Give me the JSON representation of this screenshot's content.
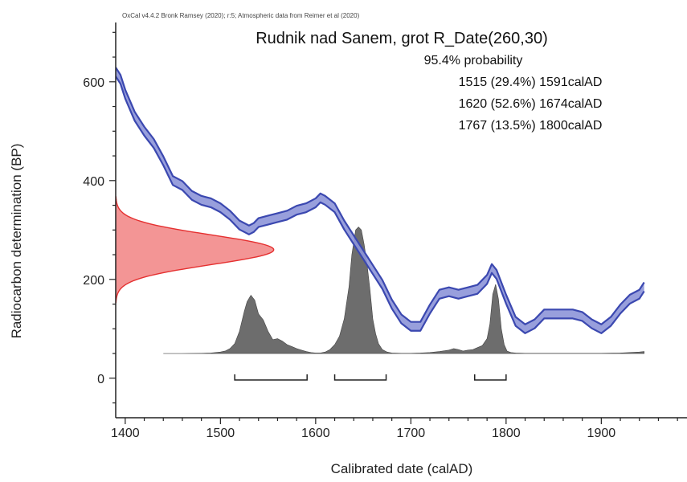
{
  "chart_data": {
    "type": "area",
    "software_header": "OxCal v4.4.2 Bronk Ramsey (2020); r:5; Atmospheric data from Reimer et al (2020)",
    "title": "Rudnik nad Sanem, grot R_Date(260,30)",
    "xlabel": "Calibrated date (calAD)",
    "ylabel": "Radiocarbon determination (BP)",
    "xlim": [
      1390,
      1990
    ],
    "ylim": [
      -80,
      720
    ],
    "x_ticks": [
      1400,
      1500,
      1600,
      1700,
      1800,
      1900
    ],
    "y_ticks": [
      0,
      200,
      400,
      600
    ],
    "annotations": [
      "95.4% probability",
      "1515 (29.4%) 1591calAD",
      "1620 (52.6%) 1674calAD",
      "1767 (13.5%) 1800calAD"
    ],
    "colors": {
      "calibration_curve": "#3b48b0",
      "calibration_band": "#8d95d8",
      "radiocarbon_fill": "#f28a8a",
      "radiocarbon_line": "#e53030",
      "posterior_fill": "#6d6d6d",
      "axes": "#222222"
    },
    "series": [
      {
        "name": "calibration_curve",
        "kind": "band",
        "half_width": 9,
        "x": [
          1390,
          1395,
          1400,
          1410,
          1420,
          1430,
          1440,
          1450,
          1460,
          1470,
          1480,
          1490,
          1500,
          1510,
          1520,
          1530,
          1535,
          1540,
          1550,
          1560,
          1570,
          1580,
          1590,
          1600,
          1605,
          1610,
          1620,
          1630,
          1640,
          1650,
          1660,
          1670,
          1680,
          1690,
          1700,
          1710,
          1720,
          1730,
          1740,
          1750,
          1760,
          1770,
          1780,
          1785,
          1790,
          1795,
          1800,
          1810,
          1820,
          1830,
          1840,
          1850,
          1860,
          1870,
          1880,
          1890,
          1900,
          1910,
          1920,
          1930,
          1940,
          1945
        ],
        "y": [
          620,
          605,
          575,
          530,
          500,
          475,
          440,
          400,
          390,
          370,
          360,
          355,
          345,
          330,
          310,
          300,
          305,
          315,
          320,
          325,
          330,
          340,
          345,
          355,
          365,
          360,
          345,
          310,
          280,
          250,
          220,
          190,
          150,
          120,
          105,
          105,
          140,
          170,
          175,
          170,
          175,
          180,
          200,
          222,
          210,
          185,
          160,
          115,
          100,
          110,
          130,
          130,
          130,
          130,
          125,
          110,
          100,
          115,
          140,
          160,
          170,
          185
        ]
      },
      {
        "name": "radiocarbon_determination",
        "kind": "gaussian",
        "mean": 260,
        "sd": 30,
        "x_start": 1390,
        "peak_x": 1556
      },
      {
        "name": "posterior_density",
        "kind": "area",
        "baseline": 50,
        "x": [
          1440,
          1460,
          1480,
          1490,
          1500,
          1505,
          1510,
          1515,
          1520,
          1525,
          1528,
          1532,
          1536,
          1540,
          1545,
          1550,
          1555,
          1560,
          1565,
          1570,
          1575,
          1580,
          1585,
          1590,
          1595,
          1600,
          1605,
          1610,
          1615,
          1620,
          1625,
          1630,
          1635,
          1638,
          1642,
          1645,
          1648,
          1651,
          1654,
          1657,
          1660,
          1663,
          1666,
          1670,
          1675,
          1680,
          1690,
          1700,
          1710,
          1720,
          1730,
          1740,
          1745,
          1750,
          1755,
          1760,
          1765,
          1770,
          1775,
          1780,
          1783,
          1786,
          1789,
          1792,
          1795,
          1798,
          1801,
          1805,
          1810,
          1820,
          1840,
          1860,
          1880,
          1900,
          1920,
          1940,
          1945
        ],
        "y": [
          50,
          50,
          50.5,
          51,
          53,
          55,
          60,
          70,
          95,
          135,
          155,
          168,
          158,
          130,
          118,
          95,
          78,
          80,
          75,
          68,
          64,
          60,
          57,
          54,
          52,
          51,
          51,
          53,
          58,
          68,
          85,
          120,
          185,
          250,
          300,
          306,
          300,
          270,
          230,
          180,
          120,
          90,
          70,
          58,
          53,
          51,
          50.5,
          50.5,
          51,
          52,
          54,
          57,
          60,
          58,
          55,
          57,
          58,
          62,
          66,
          80,
          110,
          170,
          190,
          160,
          100,
          68,
          55,
          52,
          51,
          50.5,
          50.5,
          50.5,
          50.5,
          50.5,
          51,
          53,
          54
        ]
      }
    ],
    "ranges": [
      {
        "from": 1515,
        "to": 1591
      },
      {
        "from": 1620,
        "to": 1674
      },
      {
        "from": 1767,
        "to": 1800
      }
    ]
  }
}
